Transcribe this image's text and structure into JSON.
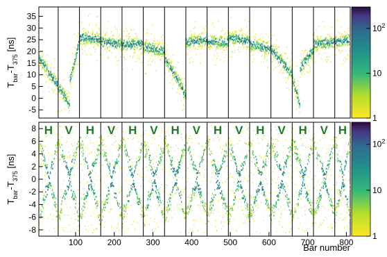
{
  "chart_data": [
    {
      "type": "heatmap",
      "panel": "top",
      "ylabel": {
        "main": "T",
        "sub1": "bar",
        "mid": "-T",
        "sub2": "375",
        "unit": " [ns]"
      },
      "xlim": [
        5,
        810
      ],
      "ylim": [
        -8.5,
        39
      ],
      "yticks": [
        -5,
        0,
        5,
        10,
        15,
        20,
        25,
        30,
        35
      ],
      "module_boundaries": [
        55,
        110,
        165,
        220,
        275,
        330,
        385,
        440,
        495,
        550,
        605,
        660,
        715,
        770
      ],
      "segments": [
        {
          "x": [
            5,
            55
          ],
          "y_start": 17,
          "y_end": 5
        },
        {
          "x": [
            55,
            85
          ],
          "y_start": 5,
          "y_end": -3
        },
        {
          "x": [
            85,
            110
          ],
          "y_start": 8,
          "y_end": 25
        },
        {
          "x": [
            110,
            165
          ],
          "y_start": 26,
          "y_end": 25
        },
        {
          "x": [
            165,
            220
          ],
          "y_start": 24,
          "y_end": 23
        },
        {
          "x": [
            220,
            275
          ],
          "y_start": 23,
          "y_end": 23
        },
        {
          "x": [
            275,
            330
          ],
          "y_start": 22,
          "y_end": 20
        },
        {
          "x": [
            330,
            370
          ],
          "y_start": 17,
          "y_end": 6
        },
        {
          "x": [
            370,
            385
          ],
          "y_start": 6,
          "y_end": 0
        },
        {
          "x": [
            385,
            440
          ],
          "y_start": 24,
          "y_end": 25
        },
        {
          "x": [
            440,
            495
          ],
          "y_start": 24,
          "y_end": 24
        },
        {
          "x": [
            495,
            550
          ],
          "y_start": 26,
          "y_end": 24
        },
        {
          "x": [
            550,
            605
          ],
          "y_start": 23,
          "y_end": 21
        },
        {
          "x": [
            605,
            660
          ],
          "y_start": 21,
          "y_end": 10
        },
        {
          "x": [
            660,
            680
          ],
          "y_start": 8,
          "y_end": -3
        },
        {
          "x": [
            680,
            715
          ],
          "y_start": 13,
          "y_end": 21
        },
        {
          "x": [
            715,
            770
          ],
          "y_start": 23,
          "y_end": 24
        },
        {
          "x": [
            770,
            810
          ],
          "y_start": 24,
          "y_end": 25
        }
      ],
      "colorbar": {
        "scale": "log",
        "range": [
          1,
          300
        ],
        "ticks": [
          {
            "v": 1,
            "label": "1"
          },
          {
            "v": 10,
            "label": "10"
          },
          {
            "v": 100,
            "label": "10",
            "exp": "2"
          }
        ]
      }
    },
    {
      "type": "heatmap",
      "panel": "bottom",
      "ylabel": {
        "main": "T",
        "sub1": "bar",
        "mid": "-T",
        "sub2": "375",
        "unit": " [ns]"
      },
      "xlabel": "Bar number",
      "xlim": [
        5,
        810
      ],
      "ylim": [
        -9,
        9
      ],
      "yticks": [
        -8,
        -6,
        -4,
        -2,
        0,
        2,
        4,
        6,
        8
      ],
      "xticks": [
        100,
        200,
        300,
        400,
        500,
        600,
        700,
        800
      ],
      "module_boundaries": [
        55,
        110,
        165,
        220,
        275,
        330,
        385,
        440,
        495,
        550,
        605,
        660,
        715,
        770
      ],
      "module_labels": [
        "H",
        "V",
        "H",
        "V",
        "H",
        "V",
        "H",
        "V",
        "H",
        "V",
        "H",
        "V",
        "H",
        "V",
        "H"
      ],
      "label_color": "#1e7a2a",
      "colorbar": {
        "scale": "log",
        "range": [
          1,
          300
        ],
        "ticks": [
          {
            "v": 1,
            "label": "1"
          },
          {
            "v": 10,
            "label": "10"
          },
          {
            "v": 100,
            "label": "10",
            "exp": "2"
          }
        ]
      }
    }
  ],
  "colors": {
    "viridis": [
      "#440154",
      "#3b528b",
      "#21908d",
      "#5dc963",
      "#fde725"
    ]
  }
}
